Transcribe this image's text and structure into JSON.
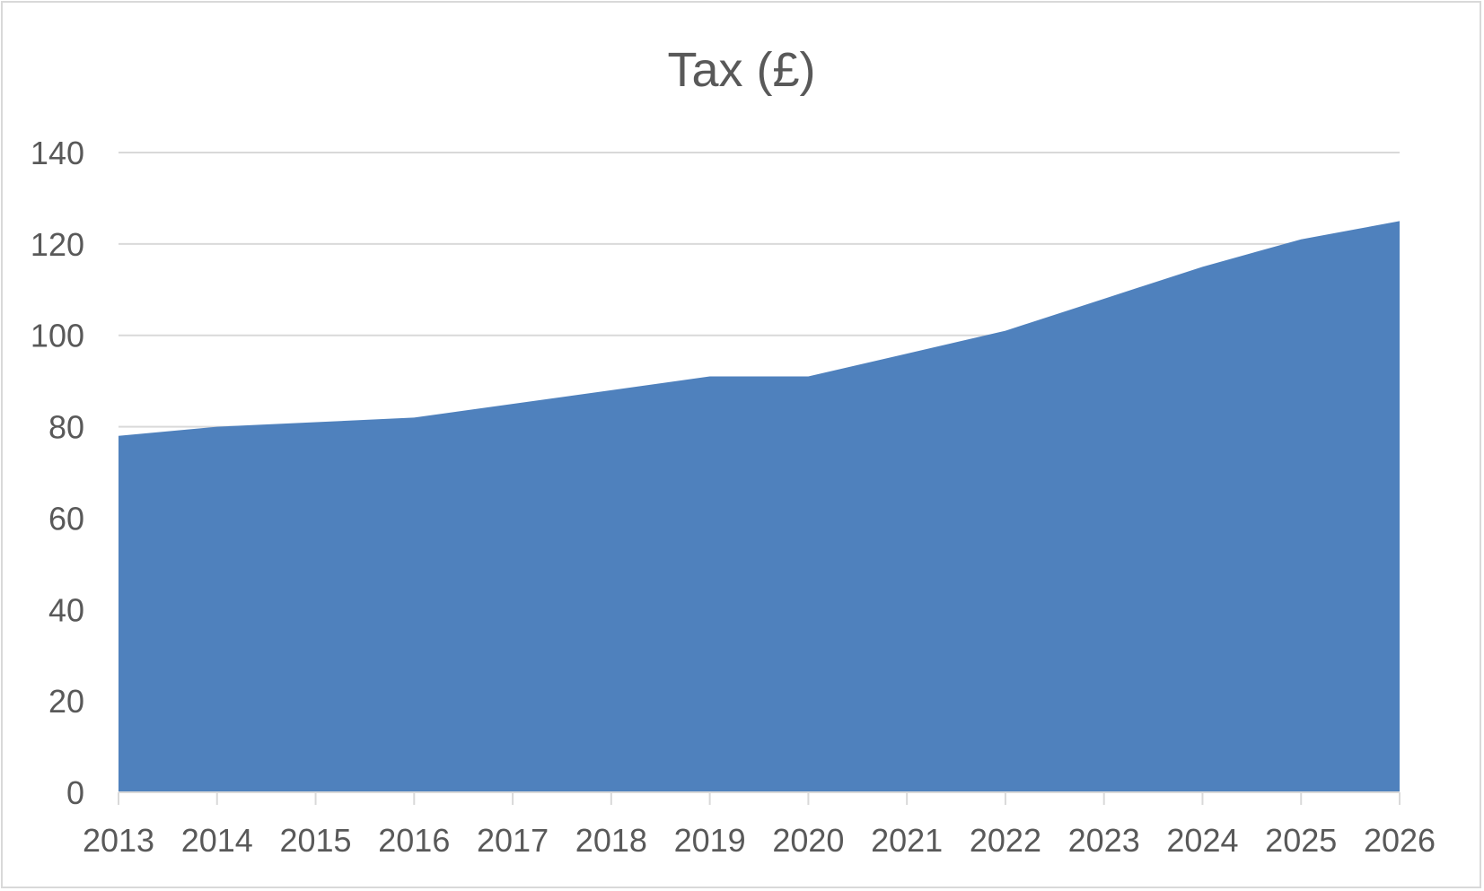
{
  "chart_data": {
    "type": "area",
    "title": "Tax (£)",
    "xlabel": "",
    "ylabel": "",
    "x": [
      "2013",
      "2014",
      "2015",
      "2016",
      "2017",
      "2018",
      "2019",
      "2020",
      "2021",
      "2022",
      "2023",
      "2024",
      "2025",
      "2026"
    ],
    "series": [
      {
        "values": [
          78,
          80,
          81,
          82,
          85,
          88,
          91,
          91,
          96,
          101,
          108,
          115,
          121,
          125
        ]
      }
    ],
    "ylim": [
      0,
      140
    ],
    "yticks": [
      "0",
      "20",
      "40",
      "60",
      "80",
      "100",
      "120",
      "140"
    ],
    "grid": true,
    "legend": "none",
    "colors": {
      "area": "#4f81bd",
      "grid": "#d9d9d9",
      "axis": "#d9d9d9",
      "text": "#595959"
    }
  }
}
